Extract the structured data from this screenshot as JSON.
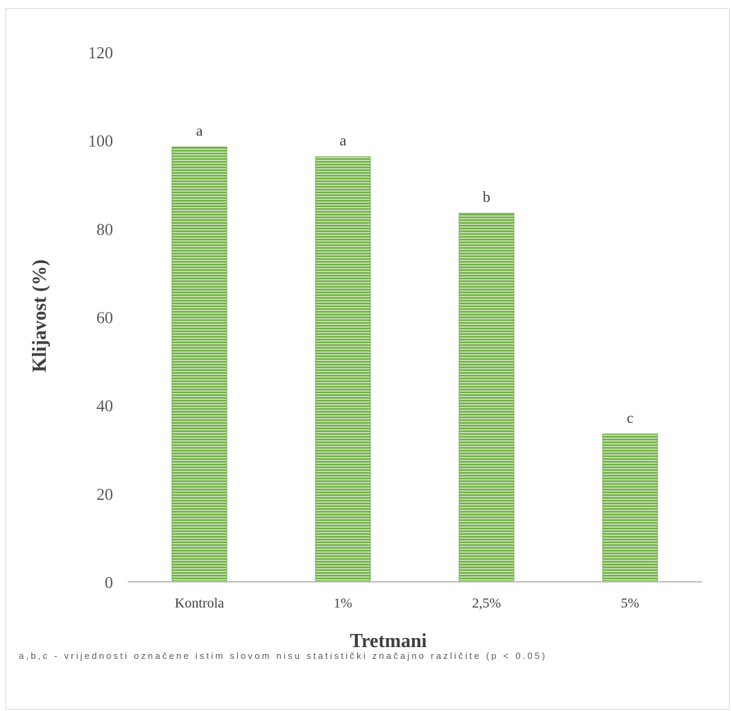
{
  "chart_data": {
    "type": "bar",
    "categories": [
      "Kontrola",
      "1%",
      "2,5%",
      "5%"
    ],
    "values": [
      98.5,
      96.3,
      83.5,
      33.5
    ],
    "data_labels": [
      "a",
      "a",
      "b",
      "c"
    ],
    "xlabel": "Tretmani",
    "ylabel": "Klijavost (%)",
    "ylim": [
      0,
      120
    ],
    "yticks": [
      "0",
      "20",
      "40",
      "60",
      "80",
      "100",
      "120"
    ],
    "ytick_values": [
      0,
      20,
      40,
      60,
      80,
      100,
      120
    ],
    "grid": false,
    "bar_color": "#70ad47",
    "bar_fill": "horizontal-stripes"
  },
  "footnote": "a,b,c - vrijednosti označene istim slovom nisu statistički značajno različite (p < 0.05)"
}
